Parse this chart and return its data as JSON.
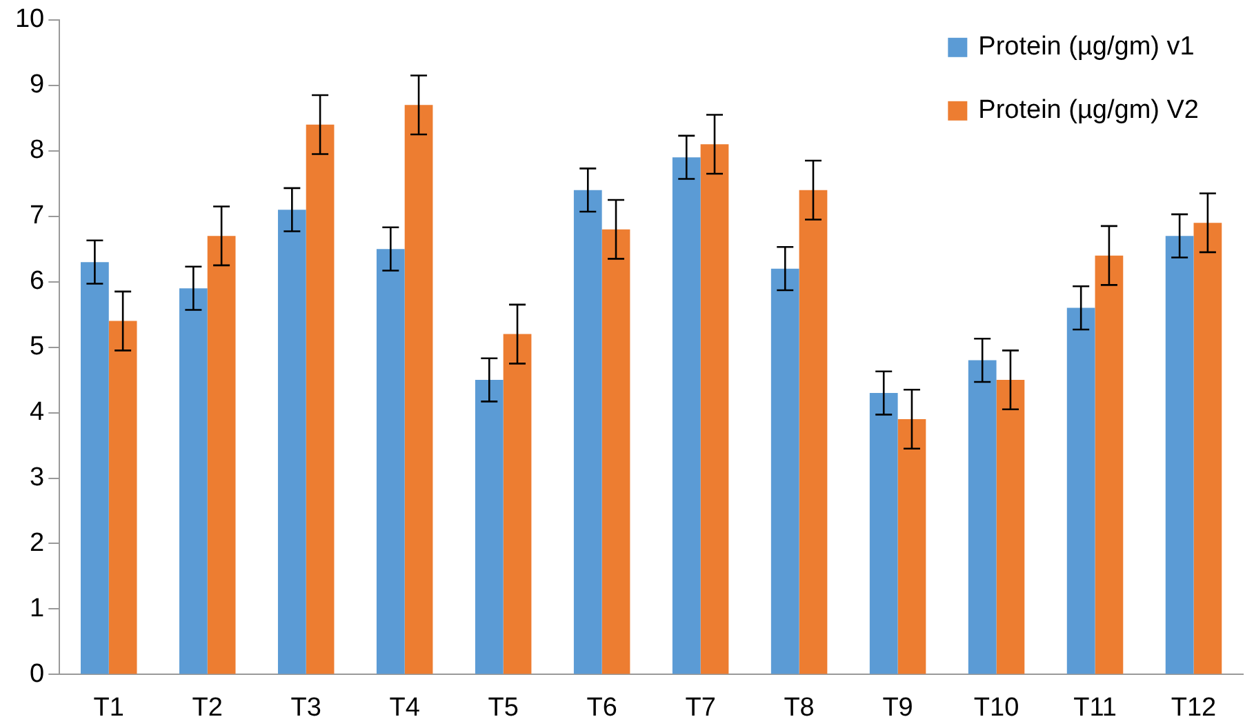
{
  "chart_data": {
    "type": "bar",
    "categories": [
      "T1",
      "T2",
      "T3",
      "T4",
      "T5",
      "T6",
      "T7",
      "T8",
      "T9",
      "T10",
      "T11",
      "T12"
    ],
    "series": [
      {
        "name": "Protein (µg/gm) v1",
        "color": "#5b9bd5",
        "values": [
          6.3,
          5.9,
          7.1,
          6.5,
          4.5,
          7.4,
          7.9,
          6.2,
          4.3,
          4.8,
          5.6,
          6.7
        ],
        "errors": [
          0.33,
          0.33,
          0.33,
          0.33,
          0.33,
          0.33,
          0.33,
          0.33,
          0.33,
          0.33,
          0.33,
          0.33
        ]
      },
      {
        "name": "Protein (µg/gm) V2",
        "color": "#ed7d31",
        "values": [
          5.4,
          6.7,
          8.4,
          8.7,
          5.2,
          6.8,
          8.1,
          7.4,
          3.9,
          4.5,
          6.4,
          6.9
        ],
        "errors": [
          0.45,
          0.45,
          0.45,
          0.45,
          0.45,
          0.45,
          0.45,
          0.45,
          0.45,
          0.45,
          0.45,
          0.45
        ]
      }
    ],
    "ylim": [
      0,
      10
    ],
    "yticks": [
      0,
      1,
      2,
      3,
      4,
      5,
      6,
      7,
      8,
      9,
      10
    ],
    "grid": false,
    "legend": "top right"
  }
}
